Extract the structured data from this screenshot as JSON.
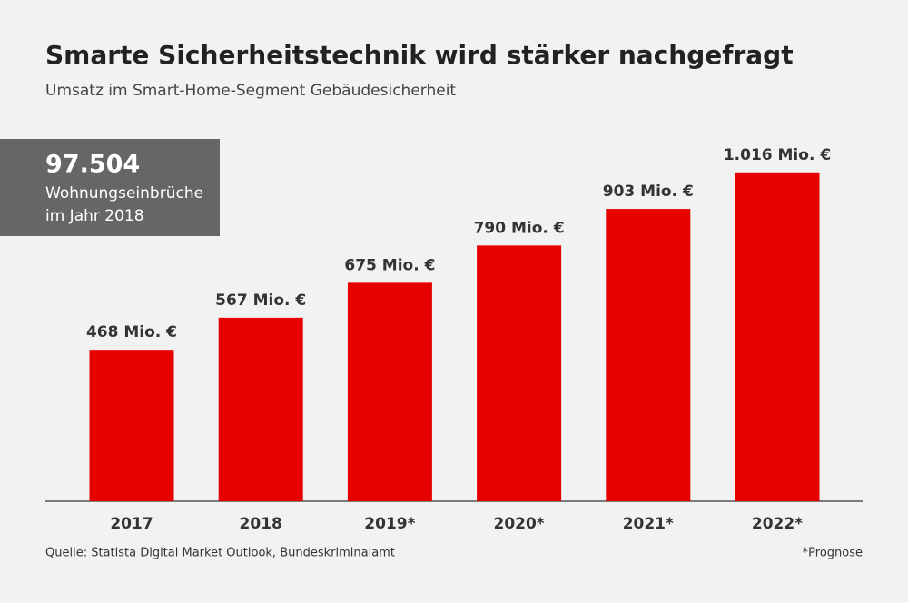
{
  "chart_data": {
    "type": "bar",
    "title": "Smarte Sicherheitstechnik wird stärker nachgefragt",
    "subtitle": "Umsatz im Smart-Home-Segment Gebäudesicherheit",
    "categories": [
      "2017",
      "2018",
      "2019*",
      "2020*",
      "2021*",
      "2022*"
    ],
    "values": [
      468,
      567,
      675,
      790,
      903,
      1016
    ],
    "value_labels": [
      "468 Mio. €",
      "567 Mio. €",
      "675 Mio. €",
      "790 Mio. €",
      "903 Mio. €",
      "1.016 Mio. €"
    ],
    "color": "#e60000",
    "annotation": {
      "number": "97.504",
      "lines": [
        "Wohnungseinbrüche",
        "im Jahr 2018"
      ]
    },
    "source": "Quelle: Statista Digital Market Outlook, Bundeskriminalamt",
    "footnote": "*Prognose"
  }
}
